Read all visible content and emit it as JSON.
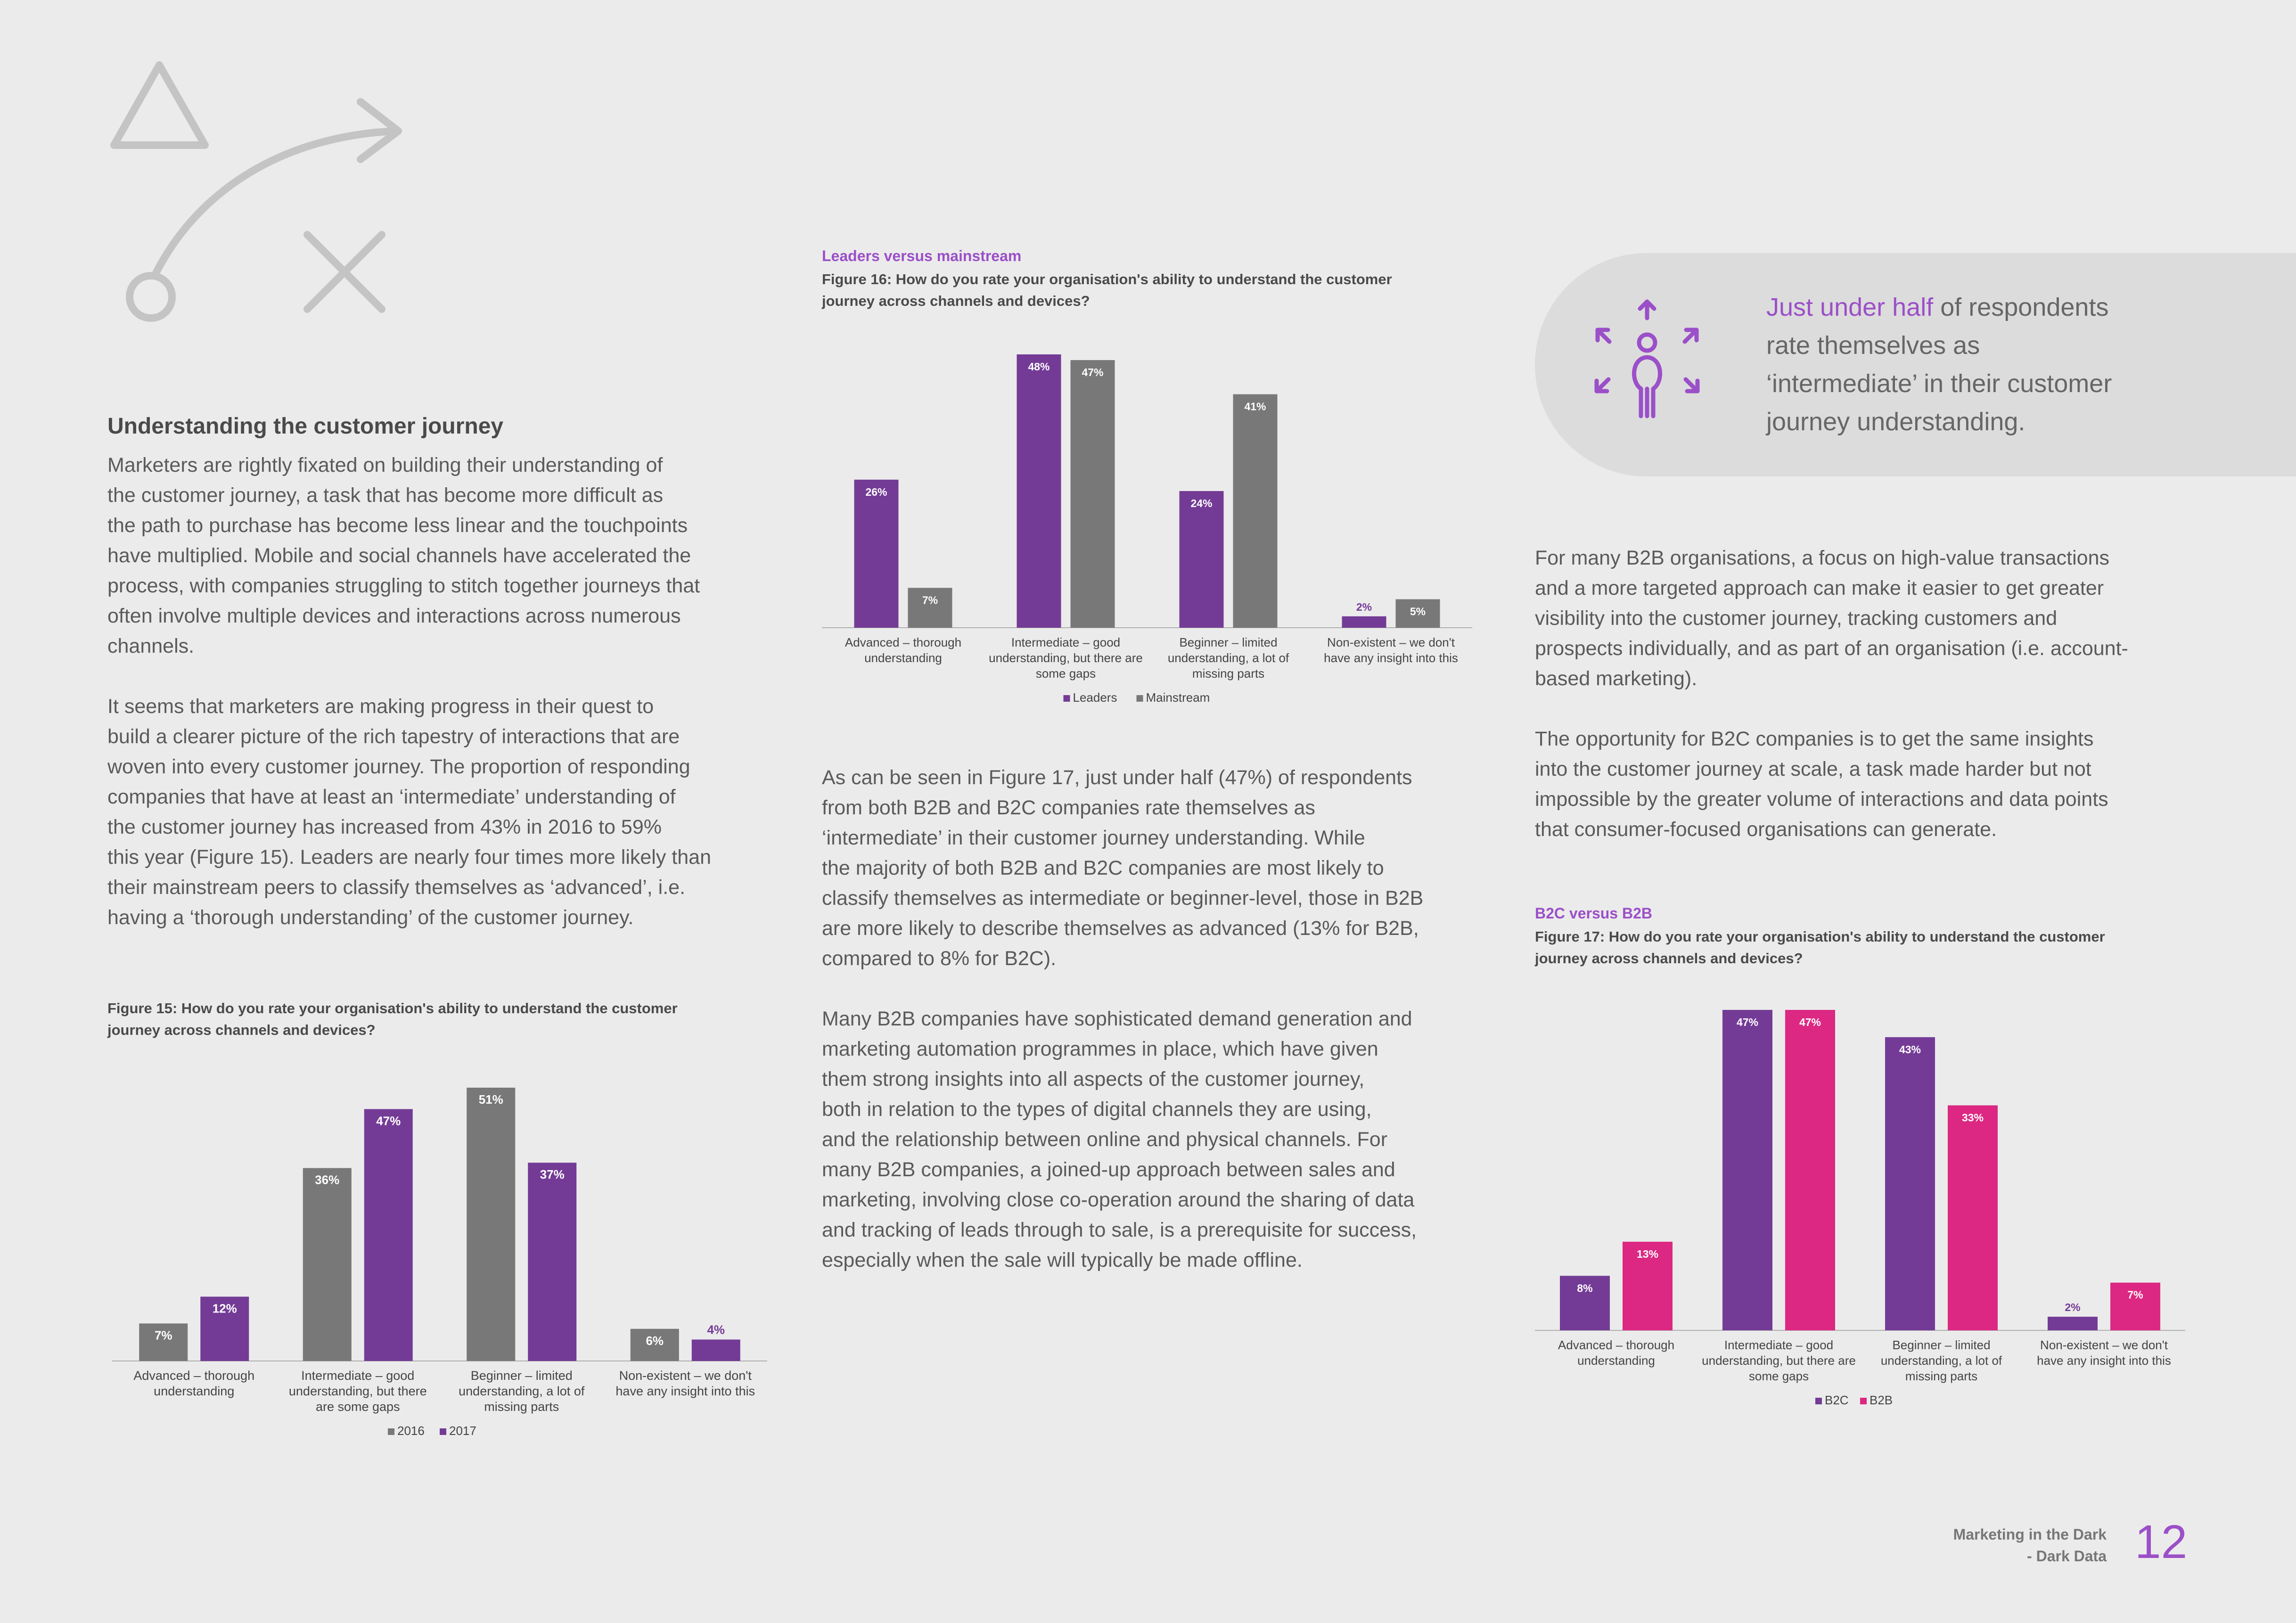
{
  "left": {
    "heading": "Understanding the customer journey",
    "lines1": [
      "Marketers are rightly fixated on building their understanding of",
      "the customer journey, a task that has become more difficult as",
      "the path to purchase has become less linear and the touchpoints",
      "have multiplied. Mobile and social channels have accelerated the",
      "process, with companies struggling to stitch together journeys that",
      "often involve multiple devices and interactions across numerous",
      "channels."
    ],
    "lines2": [
      "It seems that marketers are making progress in their quest to",
      "build a clearer picture of the rich tapestry of interactions that are",
      "woven into every customer journey. The proportion of responding",
      "companies that have at least an ‘intermediate’ understanding of",
      "the customer journey has increased from 43% in 2016 to 59%",
      "this year (Figure 15). Leaders are nearly four times more likely than",
      "their mainstream peers to classify themselves as ‘advanced’, i.e.",
      "having a ‘thorough understanding’ of the customer journey."
    ]
  },
  "middle": {
    "lines1": [
      "As can be seen in Figure 17, just under half (47%) of respondents",
      "from both B2B and B2C companies rate themselves as",
      "‘intermediate’ in their customer journey understanding. While",
      "the majority of both B2B and B2C companies are most likely to",
      "classify themselves as intermediate or beginner-level, those in B2B",
      "are more likely to describe themselves as advanced (13% for B2B,",
      "compared to 8% for B2C)."
    ],
    "lines2": [
      "Many B2B companies have sophisticated demand generation and",
      "marketing automation programmes in place, which have given",
      "them strong insights into all aspects of the customer journey,",
      "both in relation to the types of digital channels they are using,",
      "and the relationship between online and physical channels. For",
      "many B2B companies, a joined-up approach between sales and",
      "marketing, involving close co-operation around the sharing of data",
      "and tracking of leads through to sale, is a prerequisite for success,",
      "especially when the sale will typically be made offline."
    ]
  },
  "callout": {
    "highlight": "Just under half",
    "lines": [
      " of respondents",
      "rate themselves as",
      "‘intermediate’ in their customer",
      "journey understanding."
    ]
  },
  "right": {
    "lines1": [
      "For many B2B organisations, a focus on high-value transactions",
      "and a more targeted approach can make it easier to get greater",
      "visibility into the customer journey, tracking customers and",
      "prospects individually, and as part of an organisation (i.e. account-",
      "based marketing)."
    ],
    "lines2": [
      "The opportunity for B2C companies is to get the same insights",
      "into the customer journey at scale, a task made harder but not",
      "impossible by the greater volume of interactions and data points",
      "that consumer-focused organisations can generate."
    ]
  },
  "footer": {
    "title_line1": "Marketing in the Dark",
    "title_line2": "- Dark Data",
    "page_number": "12"
  },
  "colors": {
    "purple": "#743b96",
    "grey": "#787878",
    "magenta": "#dc2882",
    "accent": "#9b4fc8"
  },
  "chart_data": [
    {
      "id": "fig15",
      "type": "bar",
      "subtitle": "",
      "title_lines": [
        "Figure 15: How do you rate your organisation's ability to understand the customer",
        "journey across channels and devices?"
      ],
      "categories": [
        [
          "Advanced – thorough",
          "understanding"
        ],
        [
          "Intermediate – good",
          "understanding, but there",
          "are some gaps"
        ],
        [
          "Beginner – limited",
          "understanding, a lot of",
          "missing parts"
        ],
        [
          "Non-existent – we don't",
          "have any insight into this"
        ]
      ],
      "series": [
        {
          "name": "2016",
          "values": [
            7,
            36,
            51,
            6
          ],
          "color": "#787878"
        },
        {
          "name": "2017",
          "values": [
            12,
            47,
            37,
            4
          ],
          "color": "#743b96"
        }
      ],
      "ylim": [
        0,
        51
      ],
      "legend": "bottom-center"
    },
    {
      "id": "fig16",
      "type": "bar",
      "subtitle": "Leaders versus mainstream",
      "title_lines": [
        "Figure 16: How do you rate your organisation's ability to understand the customer",
        "journey across channels and devices?"
      ],
      "categories": [
        [
          "Advanced – thorough",
          "understanding"
        ],
        [
          "Intermediate – good",
          "understanding, but there are",
          "some gaps"
        ],
        [
          "Beginner – limited",
          "understanding, a lot of",
          "missing parts"
        ],
        [
          "Non-existent – we don't",
          "have any insight into this"
        ]
      ],
      "series": [
        {
          "name": "Leaders",
          "values": [
            26,
            48,
            24,
            2
          ],
          "color": "#743b96"
        },
        {
          "name": "Mainstream",
          "values": [
            7,
            47,
            41,
            5
          ],
          "color": "#787878"
        }
      ],
      "ylim": [
        0,
        48
      ],
      "legend": "bottom-center"
    },
    {
      "id": "fig17",
      "type": "bar",
      "subtitle": "B2C versus B2B",
      "title_lines": [
        "Figure 17: How do you rate your organisation's ability to understand the customer",
        "journey across channels and devices?"
      ],
      "categories": [
        [
          "Advanced – thorough",
          "understanding"
        ],
        [
          "Intermediate – good",
          "understanding, but there are",
          "some gaps"
        ],
        [
          "Beginner – limited",
          "understanding, a lot of",
          "missing parts"
        ],
        [
          "Non-existent – we don't",
          "have any insight into this"
        ]
      ],
      "series": [
        {
          "name": "B2C",
          "values": [
            8,
            47,
            43,
            2
          ],
          "color": "#743b96"
        },
        {
          "name": "B2B",
          "values": [
            13,
            47,
            33,
            7
          ],
          "color": "#dc2882"
        }
      ],
      "ylim": [
        0,
        47
      ],
      "legend": "bottom-center"
    }
  ]
}
